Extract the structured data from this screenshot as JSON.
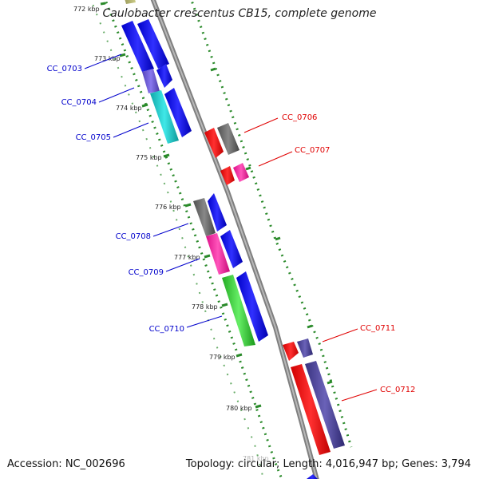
{
  "title": "Caulobacter crescentus CB15, complete genome",
  "footer": {
    "accession": "Accession: NC_002696",
    "summary": "Topology: circular; Length: 4,016,947 bp; Genes: 3,794"
  },
  "colors": {
    "backbone": "#8a8a8a",
    "dots": "#2a8a2a",
    "forward_label": "#0000cc",
    "reverse_label": "#e00000"
  },
  "scale": {
    "ticks": [
      "772 kbp",
      "773 kbp",
      "774 kbp",
      "775 kbp",
      "776 kbp",
      "777 kbp",
      "778 kbp",
      "779 kbp",
      "780 kbp",
      "781 kbp"
    ]
  },
  "genes": [
    {
      "id": "CC_0703",
      "strand": "forward",
      "color": "#0000ee",
      "label_color": "#0000cc"
    },
    {
      "id": "CC_0704",
      "strand": "forward",
      "color": "#7766dd",
      "label_color": "#0000cc"
    },
    {
      "id": "CC_0705",
      "strand": "forward",
      "color": "#22cccc",
      "label_color": "#0000cc"
    },
    {
      "id": "CC_0706",
      "strand": "reverse",
      "color": "#ff0000",
      "label_color": "#e00000"
    },
    {
      "id": "CC_0707",
      "strand": "reverse",
      "color": "#ff0000",
      "label_color": "#e00000"
    },
    {
      "id": "CC_0708",
      "strand": "forward",
      "color": "#666666",
      "label_color": "#0000cc"
    },
    {
      "id": "CC_0709",
      "strand": "forward",
      "color": "#ff2299",
      "label_color": "#0000cc"
    },
    {
      "id": "CC_0710",
      "strand": "forward",
      "color": "#33cc33",
      "label_color": "#0000cc"
    },
    {
      "id": "CC_0711",
      "strand": "reverse",
      "color": "#ff0000",
      "label_color": "#e00000"
    },
    {
      "id": "CC_0712",
      "strand": "reverse",
      "color": "#ff0000",
      "label_color": "#e00000"
    }
  ]
}
